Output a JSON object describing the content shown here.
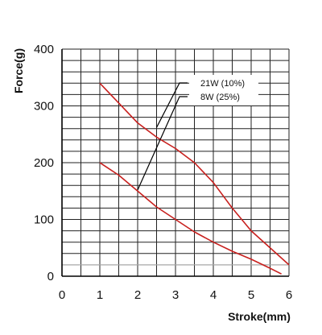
{
  "chart_data": {
    "type": "line",
    "title": "",
    "xlabel": "Stroke(mm)",
    "ylabel": "Force(g)",
    "xlim": [
      0,
      6
    ],
    "ylim": [
      0,
      400
    ],
    "x_ticks": [
      0,
      1,
      2,
      3,
      4,
      5,
      6
    ],
    "y_ticks": [
      0,
      100,
      200,
      300,
      400
    ],
    "grid": true,
    "grid_minor_x": 0.5,
    "grid_minor_y": 20,
    "legend_position": "top-right",
    "series": [
      {
        "name": "21W  (10%)",
        "color": "#c8201e",
        "x": [
          1,
          1.5,
          2,
          2.5,
          3,
          3.5,
          4,
          4.5,
          5,
          5.5,
          6
        ],
        "y": [
          340,
          305,
          270,
          245,
          225,
          200,
          165,
          120,
          80,
          50,
          20
        ]
      },
      {
        "name": "8W   (25%)",
        "color": "#c8201e",
        "x": [
          1,
          1.5,
          2,
          2.5,
          3,
          3.5,
          4,
          4.5,
          5,
          5.5,
          5.8
        ],
        "y": [
          200,
          178,
          150,
          122,
          100,
          78,
          60,
          44,
          30,
          14,
          4
        ]
      }
    ]
  }
}
